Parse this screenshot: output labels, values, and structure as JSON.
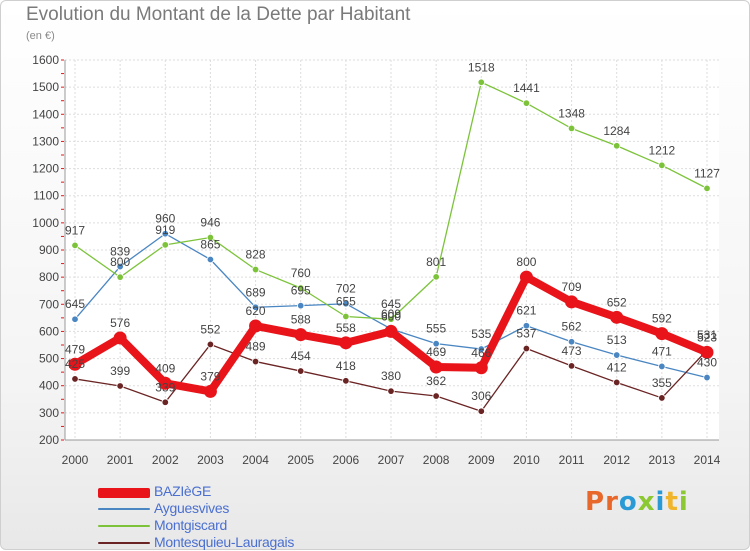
{
  "header": {
    "title": "Evolution du Montant de la Dette par Habitant",
    "unit": "(en €)"
  },
  "logo": {
    "text": "Proxiti",
    "letters": [
      {
        "ch": "P",
        "color": "#e8672a"
      },
      {
        "ch": "r",
        "color": "#e8672a"
      },
      {
        "ch": "o",
        "color": "#2a9ad6"
      },
      {
        "ch": "x",
        "color": "#8bc832"
      },
      {
        "ch": "i",
        "color": "#2a9ad6"
      },
      {
        "ch": "t",
        "color": "#f0b52a"
      },
      {
        "ch": "i",
        "color": "#8bc832"
      }
    ]
  },
  "chart_data": {
    "type": "line",
    "title": "Evolution du Montant de la Dette par Habitant",
    "ylabel": "(en €)",
    "xlabel": "",
    "x": [
      "2000",
      "2001",
      "2002",
      "2003",
      "2004",
      "2005",
      "2006",
      "2007",
      "2008",
      "2009",
      "2010",
      "2011",
      "2012",
      "2013",
      "2014"
    ],
    "ylim": [
      200,
      1600
    ],
    "yticks": [
      200,
      300,
      400,
      500,
      600,
      700,
      800,
      900,
      1000,
      1100,
      1200,
      1300,
      1400,
      1500,
      1600
    ],
    "grid": true,
    "legend_position": "bottom-left",
    "series": [
      {
        "name": "BAZIèGE",
        "color": "#e8141a",
        "emphasis": true,
        "values": [
          479,
          576,
          409,
          379,
          620,
          588,
          558,
          600,
          469,
          466,
          800,
          709,
          652,
          592,
          523
        ],
        "labels": [
          "479",
          "576",
          "409",
          "379",
          "620",
          "588",
          "558",
          "600",
          "469",
          "466",
          "800",
          "709",
          "652",
          "592",
          "523"
        ]
      },
      {
        "name": "Ayguesvives",
        "color": "#4a86c2",
        "emphasis": false,
        "values": [
          645,
          839,
          960,
          865,
          689,
          695,
          702,
          609,
          555,
          535,
          621,
          562,
          513,
          471,
          430
        ],
        "labels": [
          "645",
          "839",
          "960",
          "865",
          "689",
          "695",
          "702",
          "609",
          "555",
          "535",
          "621",
          "562",
          "513",
          "471",
          "430"
        ]
      },
      {
        "name": "Montgiscard",
        "color": "#7cc33a",
        "emphasis": false,
        "values": [
          917,
          800,
          919,
          946,
          828,
          760,
          655,
          645,
          801,
          1518,
          1441,
          1348,
          1284,
          1212,
          1127
        ],
        "labels": [
          "917",
          "800",
          "919",
          "946",
          "828",
          "760",
          "655",
          "645",
          "801",
          "1518",
          "1441",
          "1348",
          "1284",
          "1212",
          "1127"
        ]
      },
      {
        "name": "Montesquieu-Lauragais",
        "color": "#6b2424",
        "emphasis": false,
        "values": [
          425,
          399,
          339,
          552,
          489,
          454,
          418,
          380,
          362,
          306,
          537,
          473,
          412,
          355,
          531
        ],
        "labels": [
          "425",
          "399",
          "339",
          "552",
          "489",
          "454",
          "418",
          "380",
          "362",
          "306",
          "537",
          "473",
          "412",
          "355",
          "531"
        ]
      }
    ]
  }
}
